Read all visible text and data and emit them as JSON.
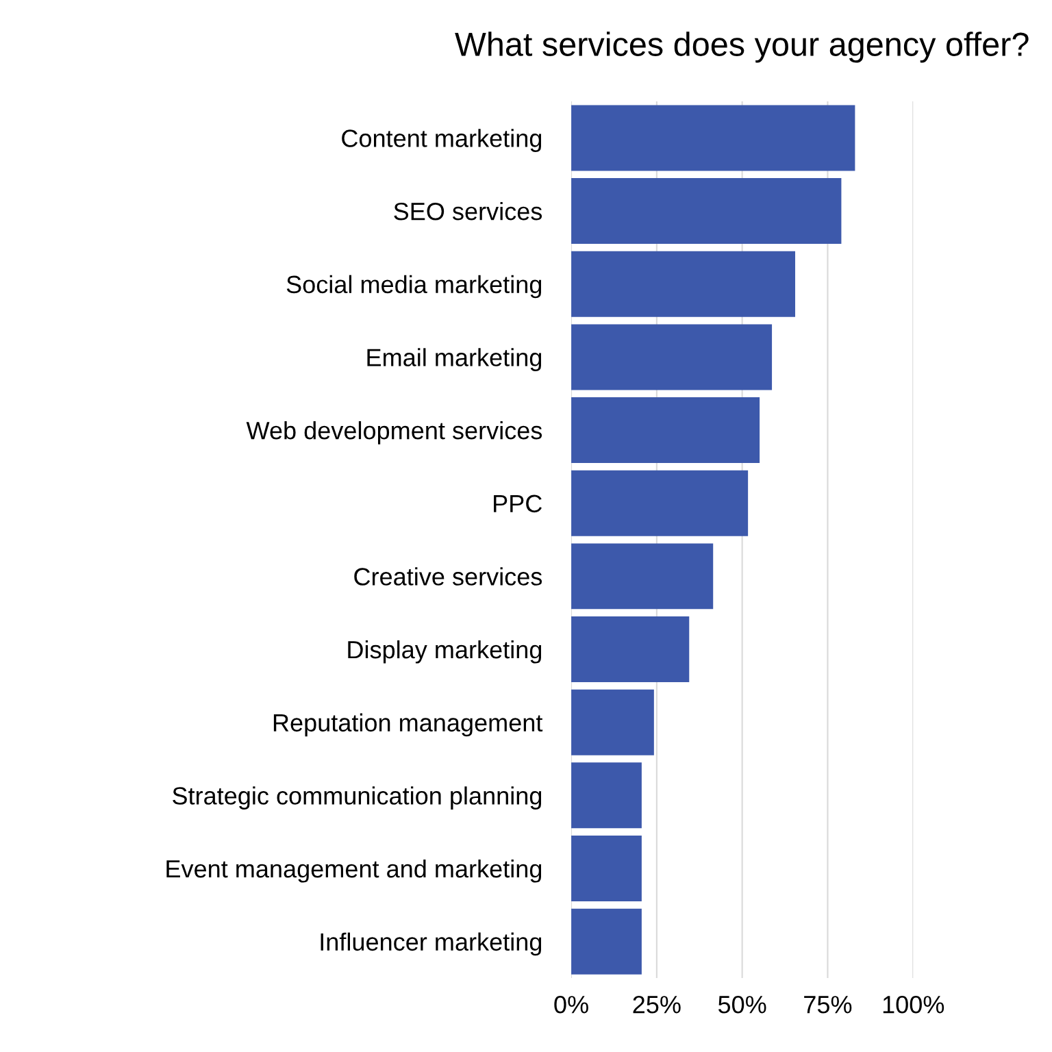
{
  "chart_data": {
    "type": "bar",
    "orientation": "horizontal",
    "title": "What services does your agency offer?",
    "categories": [
      "Content marketing",
      "SEO services",
      "Social media marketing",
      "Email marketing",
      "Web development services",
      "PPC",
      "Creative services",
      "Display marketing",
      "Reputation management",
      "Strategic communication planning",
      "Event management and marketing",
      "Influencer marketing"
    ],
    "values": [
      83,
      79,
      65.5,
      58.7,
      55.1,
      51.7,
      41.5,
      34.5,
      24.2,
      20.6,
      20.6,
      20.6
    ],
    "color": "#3d59ab",
    "xlim": [
      0,
      100
    ],
    "xticks": [
      {
        "value": 0,
        "label": "0%"
      },
      {
        "value": 25,
        "label": "25%"
      },
      {
        "value": 50,
        "label": "50%"
      },
      {
        "value": 75,
        "label": "75%"
      },
      {
        "value": 100,
        "label": "100%"
      }
    ],
    "grid": "x",
    "legend": false
  }
}
